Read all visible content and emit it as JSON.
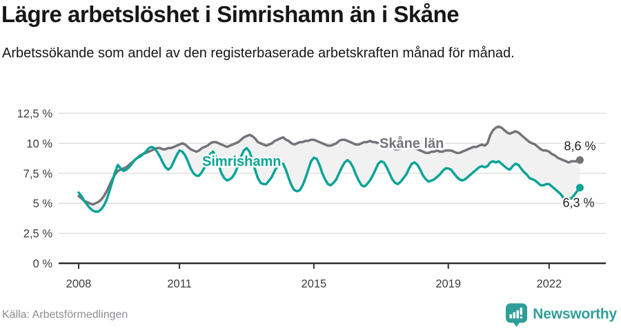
{
  "header": {
    "title": "Lägre arbetslöshet i Simrishamn än i Skåne",
    "subtitle": "Arbetssökande som andel av den registerbaserade arbetskraften månad för månad."
  },
  "footer": {
    "source": "Källa: Arbetsförmedlingen",
    "brand_name": "Newsworthy",
    "brand_color": "#2f9e99"
  },
  "chart_data": {
    "type": "line",
    "x_start": "2008-01",
    "x_end": "2022-12",
    "frequency": "monthly",
    "unit": "%",
    "grid": true,
    "ylim": [
      0,
      12.5
    ],
    "y_ticks": [
      {
        "value": 0,
        "label": "0 %"
      },
      {
        "value": 2.5,
        "label": "2,5 %"
      },
      {
        "value": 5,
        "label": "5 %"
      },
      {
        "value": 7.5,
        "label": "7,5 %"
      },
      {
        "value": 10,
        "label": "10 %"
      },
      {
        "value": 12.5,
        "label": "12,5 %"
      }
    ],
    "x_ticks": [
      {
        "year": 2008,
        "label": "2008"
      },
      {
        "year": 2011,
        "label": "2011"
      },
      {
        "year": 2015,
        "label": "2015"
      },
      {
        "year": 2019,
        "label": "2019"
      },
      {
        "year": 2022,
        "label": "2022"
      }
    ],
    "series": [
      {
        "name": "Skåne län",
        "color": "#73737a",
        "end_label": "8,6 %",
        "end_value": 8.6,
        "values": [
          5.6,
          5.4,
          5.2,
          5.1,
          5.0,
          4.9,
          5.0,
          5.1,
          5.3,
          5.6,
          6.0,
          6.5,
          7.0,
          7.4,
          7.7,
          7.8,
          7.9,
          8.0,
          8.2,
          8.4,
          8.6,
          8.8,
          9.0,
          9.1,
          9.2,
          9.3,
          9.4,
          9.5,
          9.6,
          9.6,
          9.5,
          9.5,
          9.6,
          9.6,
          9.7,
          9.8,
          9.9,
          10.0,
          9.9,
          9.7,
          9.5,
          9.4,
          9.3,
          9.4,
          9.6,
          9.7,
          9.8,
          10.0,
          10.1,
          10.1,
          10.0,
          9.9,
          9.8,
          9.7,
          9.8,
          9.9,
          10.0,
          10.1,
          10.3,
          10.5,
          10.6,
          10.7,
          10.6,
          10.4,
          10.1,
          10.0,
          9.9,
          9.8,
          9.9,
          10.0,
          10.2,
          10.3,
          10.4,
          10.5,
          10.3,
          10.2,
          10.0,
          9.9,
          10.0,
          10.1,
          10.1,
          10.2,
          10.2,
          10.3,
          10.3,
          10.2,
          10.1,
          10.0,
          9.9,
          9.8,
          9.8,
          9.9,
          10.0,
          10.2,
          10.3,
          10.3,
          10.2,
          10.1,
          10.0,
          9.9,
          9.9,
          10.0,
          10.1,
          10.1,
          10.2,
          10.1,
          10.1,
          10.0,
          10.0,
          10.0,
          9.9,
          9.7,
          9.6,
          9.5,
          9.5,
          9.6,
          9.7,
          9.7,
          9.6,
          9.6,
          9.6,
          9.5,
          9.4,
          9.3,
          9.2,
          9.2,
          9.3,
          9.3,
          9.4,
          9.3,
          9.3,
          9.4,
          9.4,
          9.4,
          9.3,
          9.2,
          9.2,
          9.3,
          9.4,
          9.5,
          9.6,
          9.7,
          9.7,
          9.8,
          9.9,
          9.8,
          10.0,
          10.7,
          11.1,
          11.3,
          11.4,
          11.3,
          11.1,
          10.9,
          10.8,
          10.9,
          11.0,
          10.9,
          10.7,
          10.5,
          10.3,
          10.1,
          10.0,
          9.9,
          9.7,
          9.5,
          9.4,
          9.4,
          9.3,
          9.1,
          9.0,
          8.8,
          8.7,
          8.6,
          8.5,
          8.4,
          8.5,
          8.5,
          8.5,
          8.6
        ]
      },
      {
        "name": "Simrishamn",
        "color": "#0aa396",
        "end_label": "6,3 %",
        "end_value": 6.3,
        "values": [
          5.9,
          5.6,
          5.2,
          4.9,
          4.6,
          4.4,
          4.3,
          4.3,
          4.5,
          4.8,
          5.3,
          6.0,
          6.8,
          7.6,
          8.2,
          7.9,
          7.7,
          7.8,
          8.0,
          8.3,
          8.6,
          8.8,
          8.9,
          9.1,
          9.3,
          9.6,
          9.7,
          9.6,
          9.3,
          8.9,
          8.4,
          8.0,
          7.8,
          8.0,
          8.5,
          9.0,
          9.4,
          9.3,
          9.0,
          8.5,
          7.9,
          7.5,
          7.3,
          7.3,
          7.6,
          8.0,
          8.6,
          9.1,
          9.3,
          8.9,
          8.2,
          7.5,
          7.1,
          6.9,
          7.0,
          7.2,
          7.6,
          8.2,
          8.9,
          9.4,
          9.6,
          9.3,
          8.6,
          7.8,
          7.1,
          6.7,
          6.6,
          6.6,
          6.9,
          7.2,
          7.7,
          8.1,
          8.3,
          8.3,
          7.8,
          7.1,
          6.5,
          6.1,
          6.0,
          6.1,
          6.5,
          7.1,
          7.8,
          8.5,
          8.8,
          8.7,
          8.2,
          7.5,
          7.0,
          6.6,
          6.5,
          6.7,
          7.0,
          7.5,
          8.0,
          8.4,
          8.6,
          8.4,
          8.0,
          7.4,
          6.9,
          6.5,
          6.4,
          6.6,
          6.9,
          7.3,
          7.8,
          8.3,
          8.5,
          8.4,
          8.0,
          7.5,
          7.0,
          6.7,
          6.6,
          6.8,
          7.1,
          7.4,
          7.9,
          8.3,
          8.4,
          8.2,
          7.8,
          7.3,
          7.0,
          6.8,
          6.9,
          7.0,
          7.2,
          7.4,
          7.7,
          7.9,
          7.9,
          7.8,
          7.5,
          7.2,
          7.0,
          6.9,
          7.0,
          7.2,
          7.4,
          7.6,
          7.8,
          8.0,
          8.1,
          8.0,
          8.1,
          8.4,
          8.5,
          8.4,
          8.5,
          8.3,
          8.1,
          7.9,
          7.8,
          8.1,
          8.3,
          8.2,
          7.9,
          7.6,
          7.4,
          7.1,
          7.0,
          6.9,
          6.7,
          6.5,
          6.5,
          6.6,
          6.6,
          6.4,
          6.2,
          6.0,
          5.8,
          5.5,
          5.4,
          5.4,
          5.4,
          5.7,
          6.0,
          6.3
        ]
      }
    ]
  }
}
